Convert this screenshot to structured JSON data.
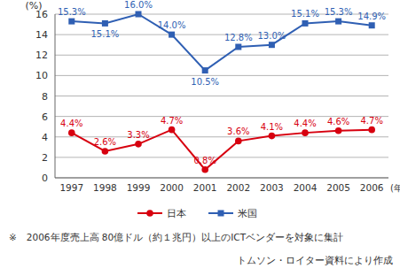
{
  "chart_data": {
    "type": "line",
    "y_label": "(%)",
    "x_label": "(年度)",
    "categories": [
      "1997",
      "1998",
      "1999",
      "2000",
      "2001",
      "2002",
      "2003",
      "2004",
      "2005",
      "2006"
    ],
    "series": [
      {
        "name": "日本",
        "color": "#d7000f",
        "marker": "circle",
        "values": [
          4.4,
          2.6,
          3.3,
          4.7,
          0.8,
          3.6,
          4.1,
          4.4,
          4.6,
          4.7
        ],
        "value_labels": [
          "4.4%",
          "2.6%",
          "3.3%",
          "4.7%",
          "0.8%",
          "3.6%",
          "4.1%",
          "4.4%",
          "4.6%",
          "4.7%"
        ]
      },
      {
        "name": "米国",
        "color": "#2f5fb3",
        "marker": "square",
        "values": [
          15.3,
          15.1,
          16.0,
          14.0,
          10.5,
          12.8,
          13.0,
          15.1,
          15.3,
          14.9
        ],
        "value_labels": [
          "15.3%",
          "15.1%",
          "16.0%",
          "14.0%",
          "10.5%",
          "12.8%",
          "13.0%",
          "15.1%",
          "15.3%",
          "14.9%"
        ]
      }
    ],
    "ylim": [
      0,
      16
    ],
    "yticks": [
      0,
      2,
      4,
      6,
      8,
      10,
      12,
      14,
      16
    ],
    "grid": true,
    "legend": "bottom",
    "data_labels": true,
    "annotations": [
      "※　2006年度売上高 80億ドル（約１兆円）以上のICTベンダーを対象に集計",
      "トムソン・ロイター資料により作成"
    ]
  }
}
